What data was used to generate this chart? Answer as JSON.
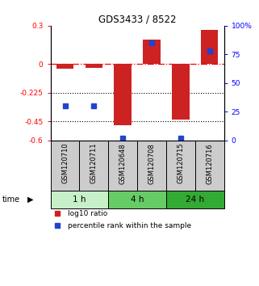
{
  "title": "GDS3433 / 8522",
  "samples": [
    "GSM120710",
    "GSM120711",
    "GSM120648",
    "GSM120708",
    "GSM120715",
    "GSM120716"
  ],
  "time_groups": [
    {
      "label": "1 h",
      "color": "#c8f0c8",
      "start": 0,
      "end": 2
    },
    {
      "label": "4 h",
      "color": "#66cc66",
      "start": 2,
      "end": 4
    },
    {
      "label": "24 h",
      "color": "#33aa33",
      "start": 4,
      "end": 6
    }
  ],
  "log10_ratio": [
    -0.04,
    -0.03,
    -0.48,
    0.19,
    -0.44,
    0.27
  ],
  "percentile_rank": [
    30,
    30,
    2,
    85,
    2,
    78
  ],
  "ylim_left": [
    -0.6,
    0.3
  ],
  "ylim_right": [
    0,
    100
  ],
  "yticks_left": [
    0.3,
    0,
    -0.225,
    -0.45,
    -0.6
  ],
  "yticks_right": [
    100,
    75,
    50,
    25,
    0
  ],
  "hline_red": 0,
  "hlines_black": [
    -0.225,
    -0.45
  ],
  "bar_color": "#cc2222",
  "dot_color": "#2244cc",
  "legend_items": [
    "log10 ratio",
    "percentile rank within the sample"
  ],
  "background_color": "#ffffff",
  "sample_box_color": "#cccccc",
  "time_label": "time"
}
